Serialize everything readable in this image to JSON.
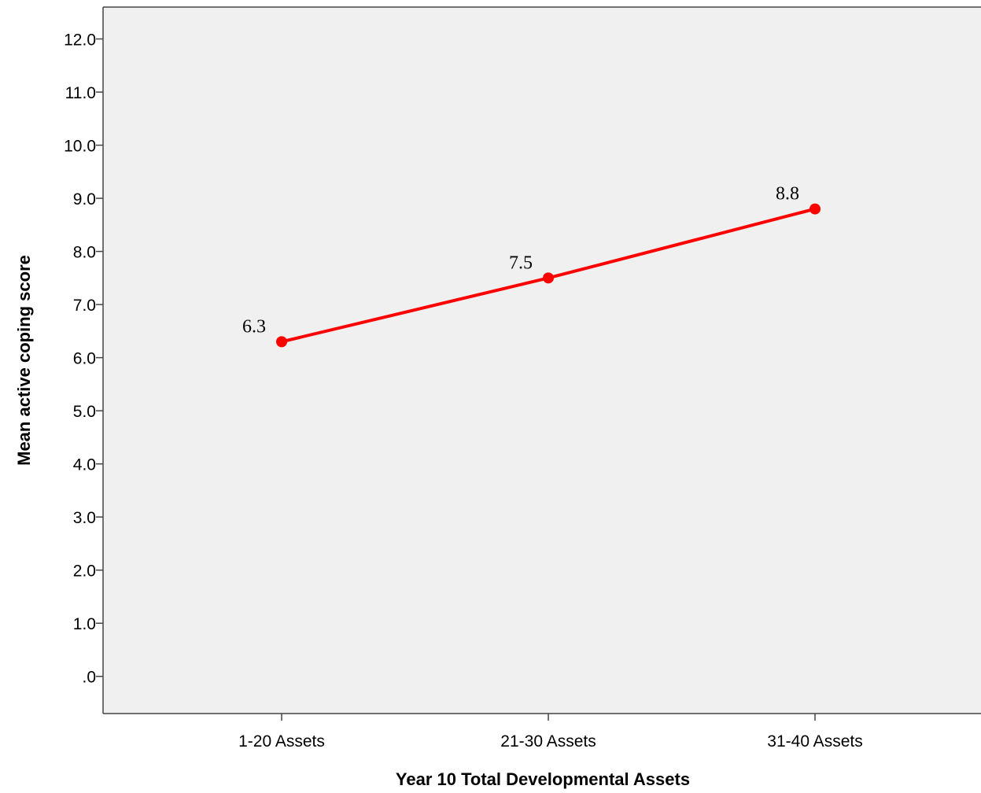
{
  "chart_data": {
    "type": "line",
    "title": "",
    "xlabel": "Year 10 Total Developmental Assets",
    "ylabel": "Mean active coping score",
    "categories": [
      "1-20 Assets",
      "21-30 Assets",
      "31-40 Assets"
    ],
    "series": [
      {
        "values": [
          6.3,
          7.5,
          8.8
        ],
        "data_labels": [
          "6.3",
          "7.5",
          "8.8"
        ],
        "color": "#ff0000"
      }
    ],
    "ylim": [
      -0.7,
      12.6
    ],
    "yticks": [
      0,
      1,
      2,
      3,
      4,
      5,
      6,
      7,
      8,
      9,
      10,
      11,
      12
    ],
    "ytick_labels": [
      ".0",
      "1.0",
      "2.0",
      "3.0",
      "4.0",
      "5.0",
      "6.0",
      "7.0",
      "8.0",
      "9.0",
      "10.0",
      "11.0",
      "12.0"
    ],
    "grid": false,
    "legend": "none",
    "plot_background": "#f0f0f0"
  }
}
